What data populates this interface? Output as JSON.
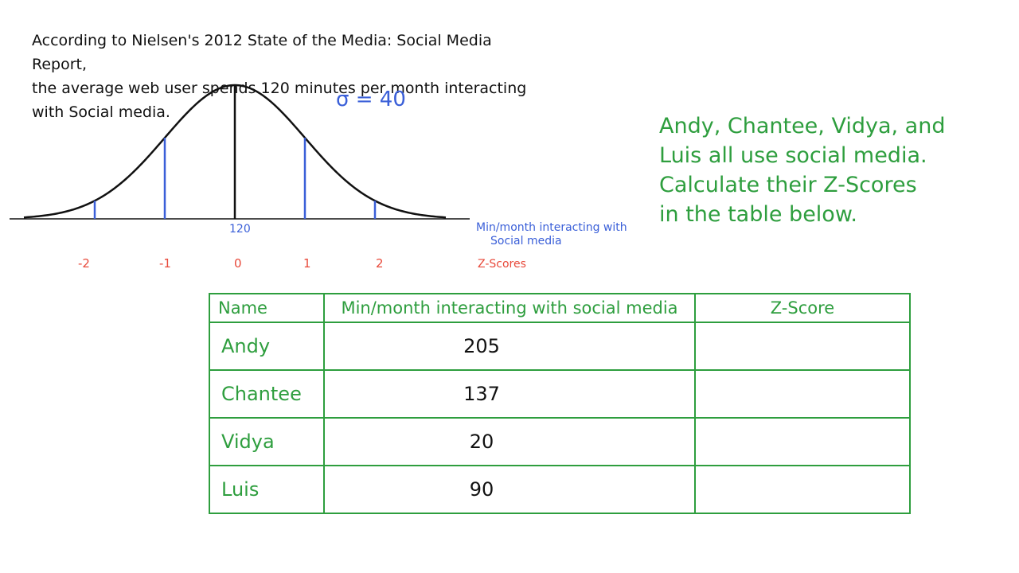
{
  "intro_text": "According to Nielsen's 2012 State of the Media: Social Media Report,\nthe average web user spends 120 minutes per month interacting\nwith Social media.",
  "sigma_label": "σ = 40",
  "prompt_text": "Andy, Chantee, Vidya, and\nLuis all use social media.\nCalculate their Z-Scores\nin the table below.",
  "curve": {
    "mean_label": "120",
    "x_axis_title_line1": "Min/month interacting with",
    "x_axis_title_line2": "Social media",
    "z_axis_title": "Z-Scores",
    "z_scores": [
      "-2",
      "-1",
      "0",
      "1",
      "2"
    ]
  },
  "table": {
    "headers": [
      "Name",
      "Min/month interacting with social media",
      "Z-Score"
    ],
    "rows": [
      {
        "name": "Andy",
        "minutes": "205",
        "z": ""
      },
      {
        "name": "Chantee",
        "minutes": "137",
        "z": ""
      },
      {
        "name": "Vidya",
        "minutes": "20",
        "z": ""
      },
      {
        "name": "Luis",
        "minutes": "90",
        "z": ""
      }
    ]
  },
  "colors": {
    "text": "#111111",
    "blue": "#3a5fd8",
    "green": "#2e9e3e",
    "red": "#e8493a"
  }
}
